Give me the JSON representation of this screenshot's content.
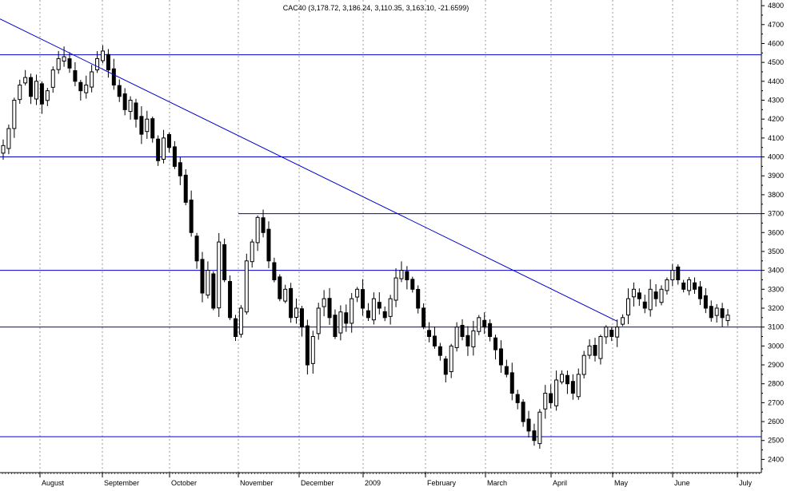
{
  "chart_data": {
    "type": "candlestick",
    "title": "CAC40 (3,178.72, 3,186.24, 3,110.35, 3,163.10, -21.6599)",
    "x_labels": [
      "August",
      "September",
      "October",
      "November",
      "December",
      "2009",
      "February",
      "March",
      "April",
      "May",
      "June",
      "July"
    ],
    "y_ticks": [
      2400,
      2500,
      2600,
      2700,
      2800,
      2900,
      3000,
      3100,
      3200,
      3300,
      3400,
      3500,
      3600,
      3700,
      3800,
      3900,
      4000,
      4100,
      4200,
      4300,
      4400,
      4500,
      4600,
      4700,
      4800
    ],
    "ylim": [
      2330,
      4830
    ],
    "grid": "vertical-dotted",
    "horizontal_levels": [
      4540,
      4000,
      3700,
      3400,
      3100,
      2520
    ],
    "resistance_ceiling_3700_start": "late October",
    "trendline": {
      "from": [
        "mid-July 2008",
        4730
      ],
      "to": [
        "mid-May 2009",
        3130
      ]
    },
    "price_path_close": [
      4060,
      4150,
      4300,
      4380,
      4420,
      4320,
      4400,
      4280,
      4350,
      4460,
      4520,
      4530,
      4470,
      4400,
      4350,
      4380,
      4450,
      4520,
      4560,
      4460,
      4380,
      4320,
      4250,
      4300,
      4200,
      4120,
      4200,
      4100,
      3980,
      4100,
      4050,
      3950,
      3900,
      3760,
      3600,
      3450,
      3280,
      3400,
      3200,
      3550,
      3350,
      3150,
      3050,
      3200,
      3450,
      3550,
      3680,
      3600,
      3450,
      3350,
      3250,
      3300,
      3150,
      3200,
      3100,
      2900,
      3050,
      3200,
      3250,
      3150,
      3050,
      3180,
      3120,
      3250,
      3300,
      3200,
      3150,
      3250,
      3200,
      3150,
      3250,
      3360,
      3400,
      3350,
      3300,
      3200,
      3100,
      3050,
      3000,
      2950,
      2850,
      3000,
      3100,
      3050,
      3000,
      3080,
      3150,
      3100,
      3050,
      2980,
      2900,
      2850,
      2750,
      2700,
      2600,
      2550,
      2500,
      2650,
      2750,
      2700,
      2820,
      2850,
      2800,
      2750,
      2850,
      2950,
      3000,
      2950,
      3050,
      3100,
      3050,
      3100,
      3150,
      3250,
      3300,
      3250,
      3200,
      3300,
      3250,
      3300,
      3350,
      3400,
      3350,
      3300,
      3350,
      3300,
      3250,
      3200,
      3150,
      3200,
      3150,
      3163
    ],
    "last_bar": {
      "open": 3178.72,
      "high": 3186.24,
      "low": 3110.35,
      "close": 3163.1,
      "change": -21.6599
    }
  }
}
